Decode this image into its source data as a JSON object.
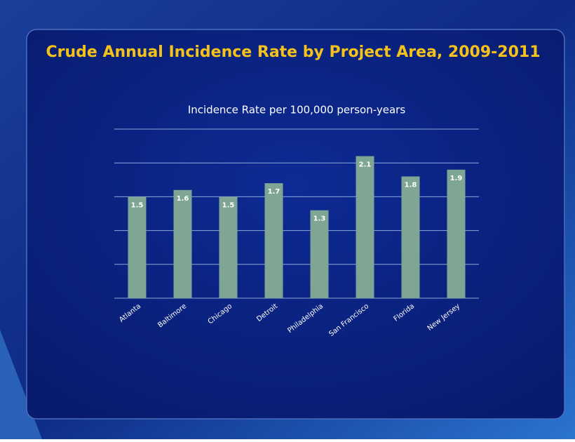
{
  "chart_data": {
    "type": "bar",
    "title": "Crude Annual Incidence Rate by Project Area, 2009-2011",
    "subtitle": "Incidence Rate per 100,000 person-years",
    "categories": [
      "Atlanta",
      "Baltimore",
      "Chicago",
      "Detroit",
      "Philadelphia",
      "San Francisco",
      "Florida",
      "New Jersey"
    ],
    "values": [
      1.5,
      1.6,
      1.5,
      1.7,
      1.3,
      2.1,
      1.8,
      1.9
    ],
    "color": "#7fa595",
    "ylim": [
      0,
      2.5
    ],
    "yticks": [
      0,
      0.5,
      1,
      1.5,
      2,
      2.5
    ],
    "grid": true
  }
}
